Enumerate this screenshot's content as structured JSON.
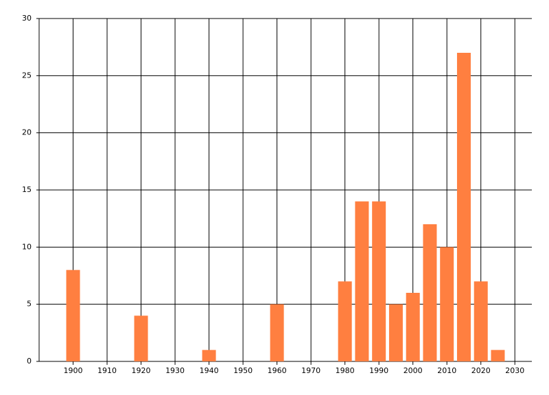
{
  "chart_data": {
    "type": "bar",
    "x": [
      1900,
      1920,
      1940,
      1960,
      1980,
      1985,
      1990,
      1995,
      2000,
      2005,
      2010,
      2015,
      2020,
      2025
    ],
    "values": [
      8,
      4,
      1,
      5,
      7,
      14,
      14,
      5,
      6,
      12,
      10,
      27,
      7,
      1
    ],
    "color": "#ff7f40",
    "xlim": [
      1890,
      2035
    ],
    "xticks": [
      1900,
      1910,
      1920,
      1930,
      1940,
      1950,
      1960,
      1970,
      1980,
      1990,
      2000,
      2010,
      2020,
      2030
    ],
    "ylim": [
      0,
      30
    ],
    "yticks": [
      0,
      5,
      10,
      15,
      20,
      25,
      30
    ],
    "grid": true
  }
}
